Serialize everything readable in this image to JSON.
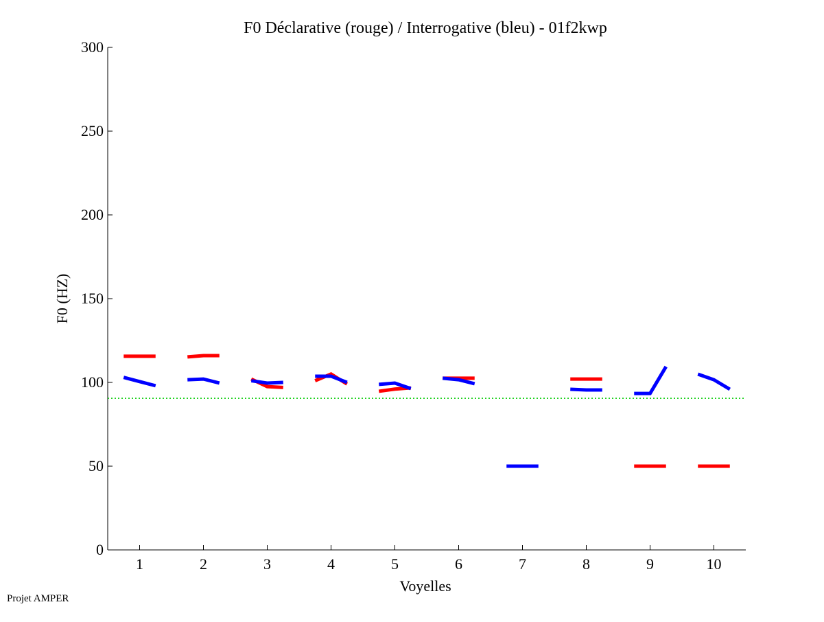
{
  "chart_data": {
    "type": "line",
    "title": "F0 Déclarative (rouge) / Interrogative (bleu) - 01f2kwp",
    "xlabel": "Voyelles",
    "ylabel": "F0 (HZ)",
    "ylim": [
      0,
      300
    ],
    "xlim": [
      0.5,
      10.5
    ],
    "yticks": [
      0,
      50,
      100,
      150,
      200,
      250,
      300
    ],
    "xticks": [
      1,
      2,
      3,
      4,
      5,
      6,
      7,
      8,
      9,
      10
    ],
    "grid": false,
    "reference_line": {
      "value": 90.5,
      "color": "#00cc00",
      "style": "dotted"
    },
    "series": [
      {
        "name": "Déclarative",
        "color": "#ff0000",
        "segments": [
          {
            "vowel": 1,
            "values": [
              115.6,
              115.6,
              115.6
            ]
          },
          {
            "vowel": 2,
            "values": [
              115.2,
              116,
              116
            ]
          },
          {
            "vowel": 3,
            "values": [
              102,
              97.5,
              97
            ]
          },
          {
            "vowel": 4,
            "values": [
              101,
              105,
              99
            ]
          },
          {
            "vowel": 5,
            "values": [
              94.7,
              96,
              96.7
            ]
          },
          {
            "vowel": 6,
            "values": [
              102.5,
              102.5,
              102.5
            ]
          },
          {
            "vowel": 8,
            "values": [
              102,
              102,
              102
            ]
          },
          {
            "vowel": 9,
            "values": [
              50,
              50,
              50
            ]
          },
          {
            "vowel": 10,
            "values": [
              50,
              50,
              50
            ]
          }
        ]
      },
      {
        "name": "Interrogative",
        "color": "#0000ff",
        "segments": [
          {
            "vowel": 1,
            "values": [
              103,
              100.5,
              98
            ]
          },
          {
            "vowel": 2,
            "values": [
              101.6,
              102,
              99.6
            ]
          },
          {
            "vowel": 3,
            "values": [
              101,
              99.6,
              100
            ]
          },
          {
            "vowel": 4,
            "values": [
              103.7,
              103.7,
              100
            ]
          },
          {
            "vowel": 5,
            "values": [
              98.8,
              99.6,
              96.3
            ]
          },
          {
            "vowel": 6,
            "values": [
              102.5,
              101.6,
              99.2
            ]
          },
          {
            "vowel": 7,
            "values": [
              50,
              50,
              50
            ]
          },
          {
            "vowel": 8,
            "values": [
              95.9,
              95.5,
              95.5
            ]
          },
          {
            "vowel": 9,
            "values": [
              93.4,
              93.4,
              109.4
            ]
          },
          {
            "vowel": 10,
            "values": [
              104.9,
              101.6,
              95.9
            ]
          }
        ]
      }
    ]
  },
  "footer": "Projet AMPER"
}
